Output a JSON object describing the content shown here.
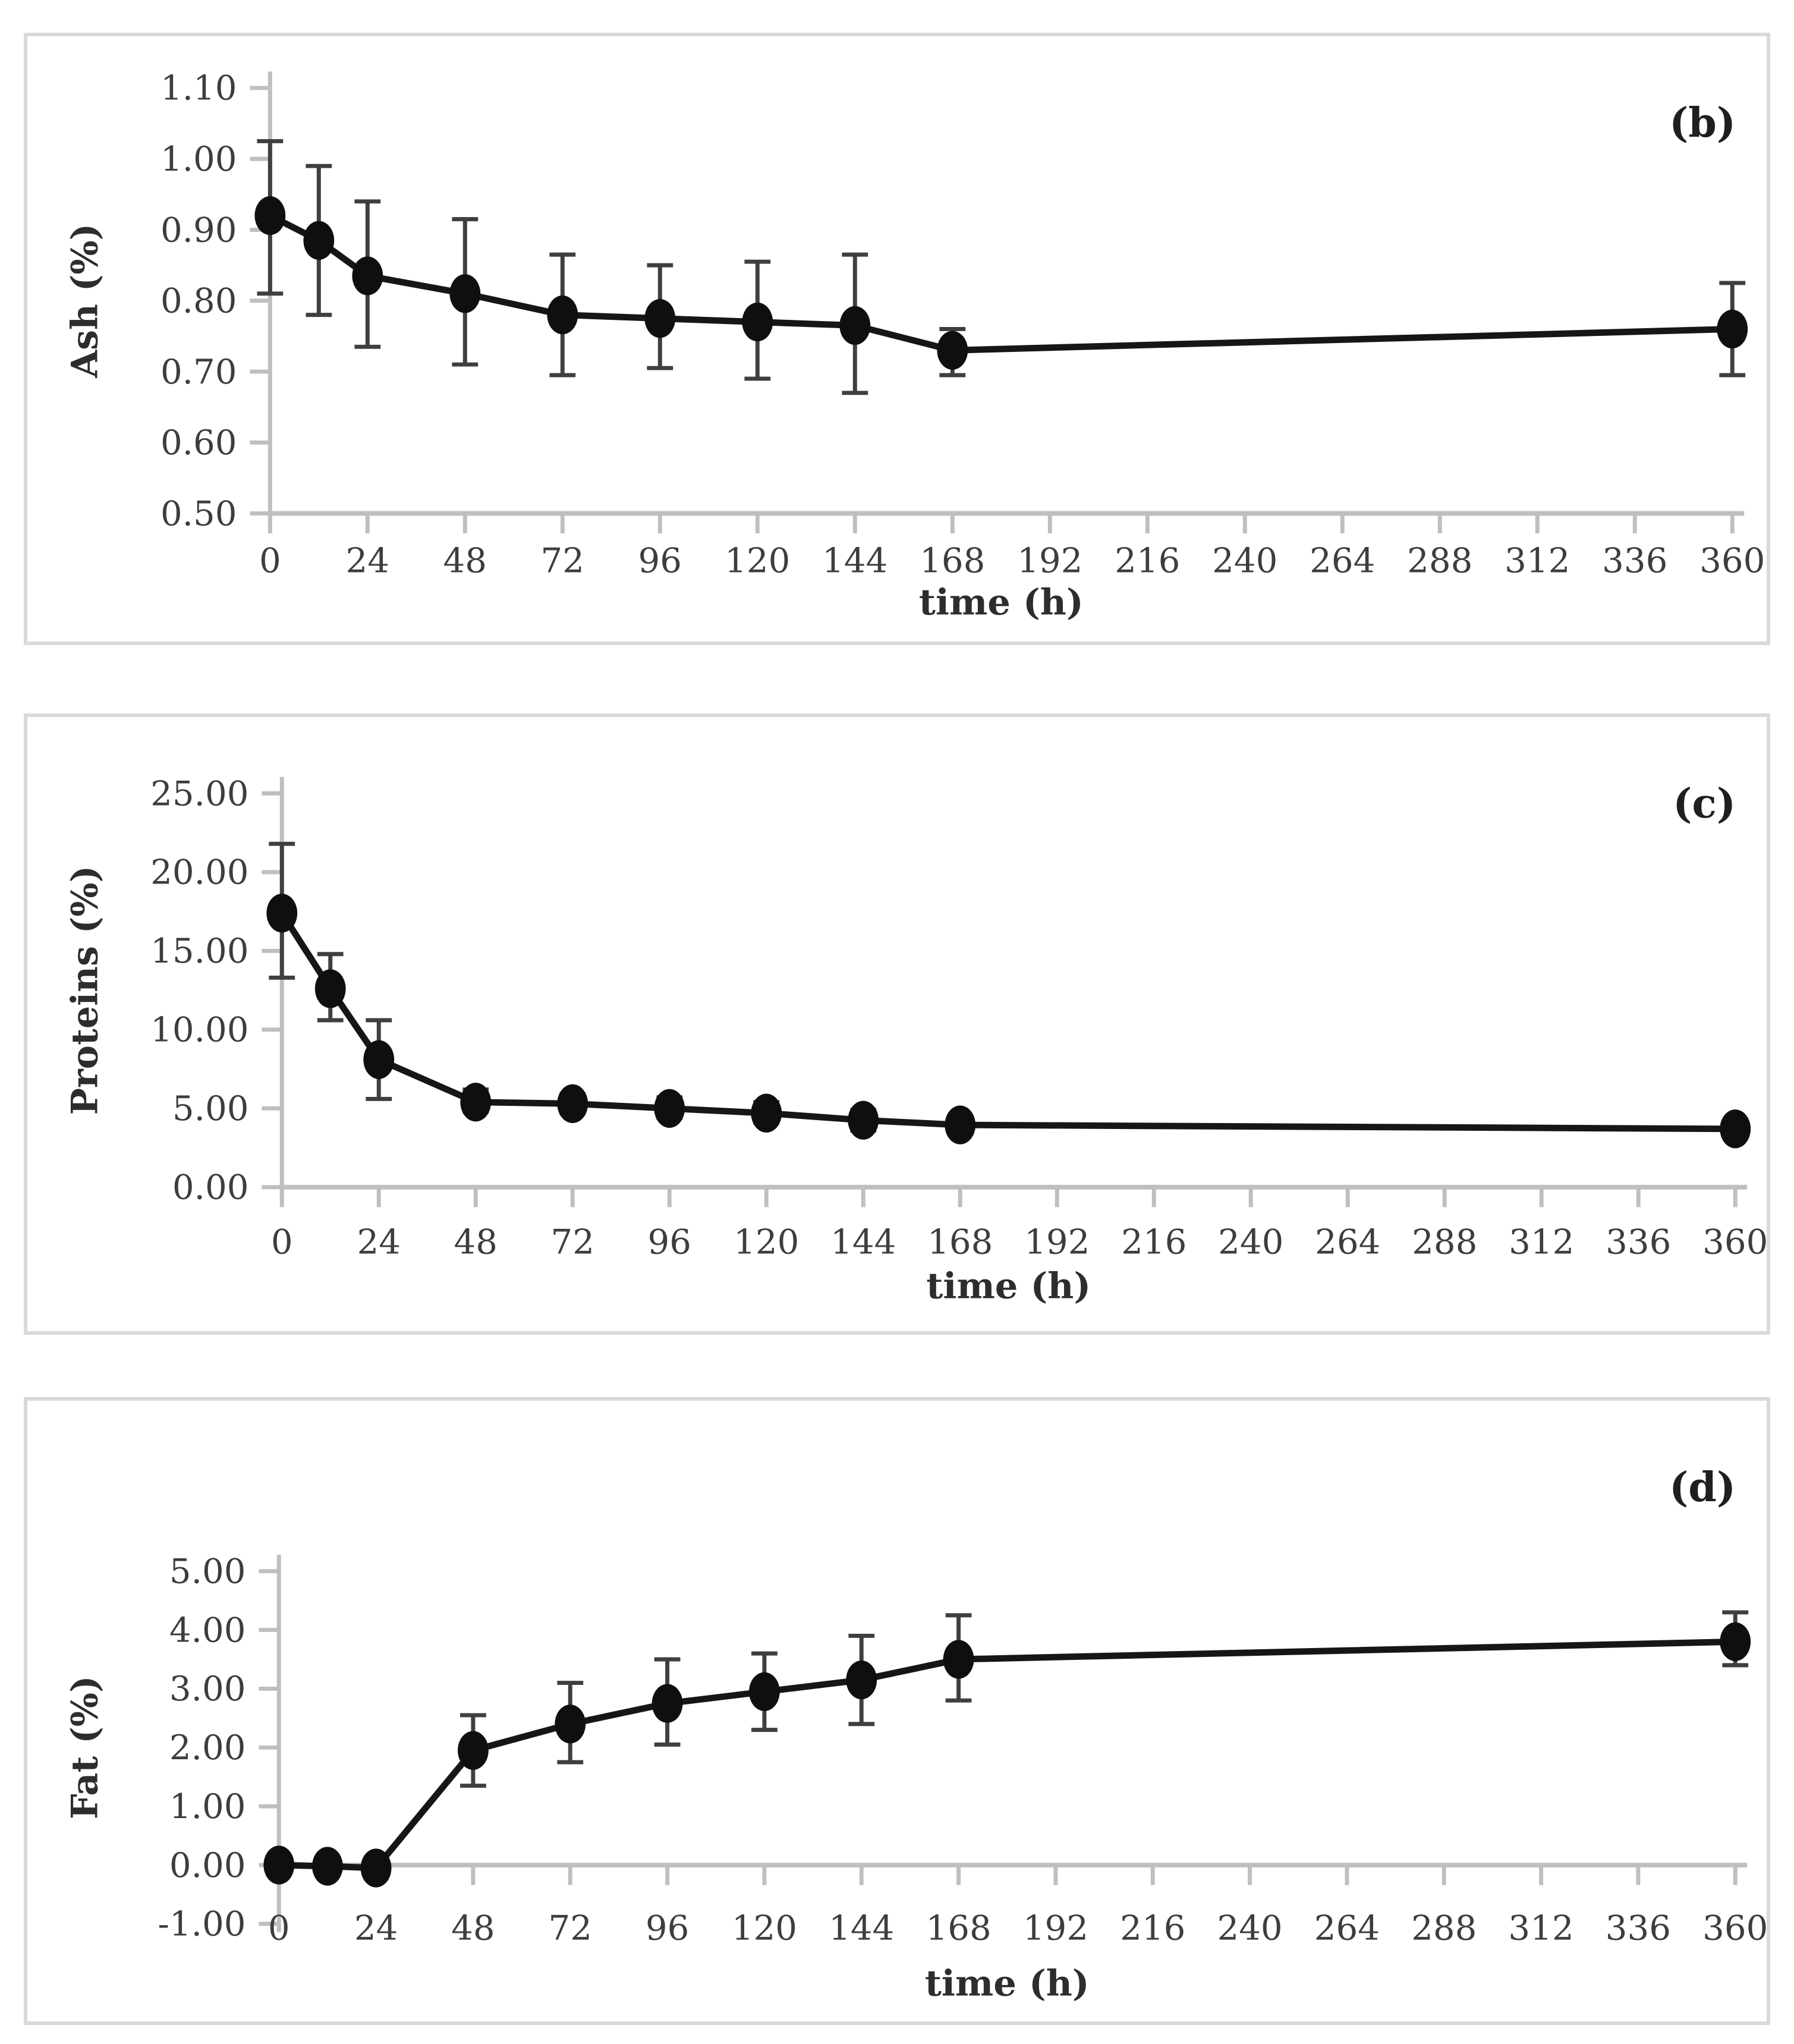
{
  "figure": {
    "background": "#ffffff",
    "xlabel": "time (h)",
    "panel_letters": [
      "(b)",
      "(c)",
      "(d)"
    ]
  },
  "colors": {
    "series_line": "#161616",
    "marker_fill": "#0f0f0f",
    "error_bar": "#3f3f3f",
    "axis_line": "#bfbfbf",
    "tick_text": "#3d3d3d",
    "title_text": "#2d2d2d",
    "panel_border": "#d9d9d9"
  },
  "chart_data": [
    {
      "panel": "b",
      "panel_label": "(b)",
      "type": "line",
      "title": "",
      "xlabel": "time (h)",
      "ylabel": "Ash (%)",
      "xlim": [
        0,
        360
      ],
      "xticks": [
        0,
        24,
        48,
        72,
        96,
        120,
        144,
        168,
        192,
        216,
        240,
        264,
        288,
        312,
        336,
        360
      ],
      "ylim": [
        0.5,
        1.1
      ],
      "ystep": 0.1,
      "ydecimals": 2,
      "axis_cross": 0.5,
      "grid": false,
      "legend": false,
      "points": [
        {
          "x": 0,
          "y": 0.92,
          "lo": 0.81,
          "hi": 1.025
        },
        {
          "x": 12,
          "y": 0.885,
          "lo": 0.78,
          "hi": 0.99
        },
        {
          "x": 24,
          "y": 0.835,
          "lo": 0.735,
          "hi": 0.94
        },
        {
          "x": 48,
          "y": 0.81,
          "lo": 0.71,
          "hi": 0.915
        },
        {
          "x": 72,
          "y": 0.78,
          "lo": 0.695,
          "hi": 0.865
        },
        {
          "x": 96,
          "y": 0.775,
          "lo": 0.705,
          "hi": 0.85
        },
        {
          "x": 120,
          "y": 0.77,
          "lo": 0.69,
          "hi": 0.855
        },
        {
          "x": 144,
          "y": 0.765,
          "lo": 0.67,
          "hi": 0.865
        },
        {
          "x": 168,
          "y": 0.73,
          "lo": 0.695,
          "hi": 0.76
        },
        {
          "x": 360,
          "y": 0.76,
          "lo": 0.695,
          "hi": 0.825
        }
      ]
    },
    {
      "panel": "c",
      "panel_label": "(c)",
      "type": "line",
      "title": "",
      "xlabel": "time (h)",
      "ylabel": "Proteins (%)",
      "xlim": [
        0,
        360
      ],
      "xticks": [
        0,
        24,
        48,
        72,
        96,
        120,
        144,
        168,
        192,
        216,
        240,
        264,
        288,
        312,
        336,
        360
      ],
      "ylim": [
        0.0,
        25.0
      ],
      "ystep": 5.0,
      "ydecimals": 2,
      "axis_cross": 0.0,
      "grid": false,
      "legend": false,
      "points": [
        {
          "x": 0,
          "y": 17.4,
          "lo": 13.3,
          "hi": 21.8
        },
        {
          "x": 12,
          "y": 12.6,
          "lo": 10.6,
          "hi": 14.8
        },
        {
          "x": 24,
          "y": 8.1,
          "lo": 5.6,
          "hi": 10.6
        },
        {
          "x": 48,
          "y": 5.4,
          "lo": 4.8,
          "hi": 6.2
        },
        {
          "x": 72,
          "y": 5.3,
          "lo": 4.7,
          "hi": 5.9
        },
        {
          "x": 96,
          "y": 5.0,
          "lo": 4.4,
          "hi": 5.7
        },
        {
          "x": 120,
          "y": 4.7,
          "lo": 4.1,
          "hi": 5.4
        },
        {
          "x": 144,
          "y": 4.25,
          "lo": 3.6,
          "hi": 4.9
        },
        {
          "x": 168,
          "y": 3.95,
          "lo": 3.4,
          "hi": 4.5
        },
        {
          "x": 360,
          "y": 3.7,
          "lo": 3.7,
          "hi": 3.7
        }
      ]
    },
    {
      "panel": "d",
      "panel_label": "(d)",
      "type": "line",
      "title": "",
      "xlabel": "time (h)",
      "ylabel": "Fat (%)",
      "xlim": [
        0,
        360
      ],
      "xticks": [
        0,
        24,
        48,
        72,
        96,
        120,
        144,
        168,
        192,
        216,
        240,
        264,
        288,
        312,
        336,
        360
      ],
      "ylim": [
        -1.0,
        5.0
      ],
      "ystep": 1.0,
      "ydecimals": 2,
      "axis_cross": 0.0,
      "grid": false,
      "legend": false,
      "points": [
        {
          "x": 0,
          "y": 0.0,
          "lo": 0.0,
          "hi": 0.0
        },
        {
          "x": 12,
          "y": -0.02,
          "lo": -0.02,
          "hi": -0.02
        },
        {
          "x": 24,
          "y": -0.05,
          "lo": -0.05,
          "hi": -0.05
        },
        {
          "x": 48,
          "y": 1.95,
          "lo": 1.35,
          "hi": 2.55
        },
        {
          "x": 72,
          "y": 2.4,
          "lo": 1.75,
          "hi": 3.1
        },
        {
          "x": 96,
          "y": 2.75,
          "lo": 2.05,
          "hi": 3.5
        },
        {
          "x": 120,
          "y": 2.95,
          "lo": 2.3,
          "hi": 3.6
        },
        {
          "x": 144,
          "y": 3.15,
          "lo": 2.4,
          "hi": 3.9
        },
        {
          "x": 168,
          "y": 3.5,
          "lo": 2.8,
          "hi": 4.25
        },
        {
          "x": 360,
          "y": 3.8,
          "lo": 3.4,
          "hi": 4.3
        }
      ]
    }
  ]
}
